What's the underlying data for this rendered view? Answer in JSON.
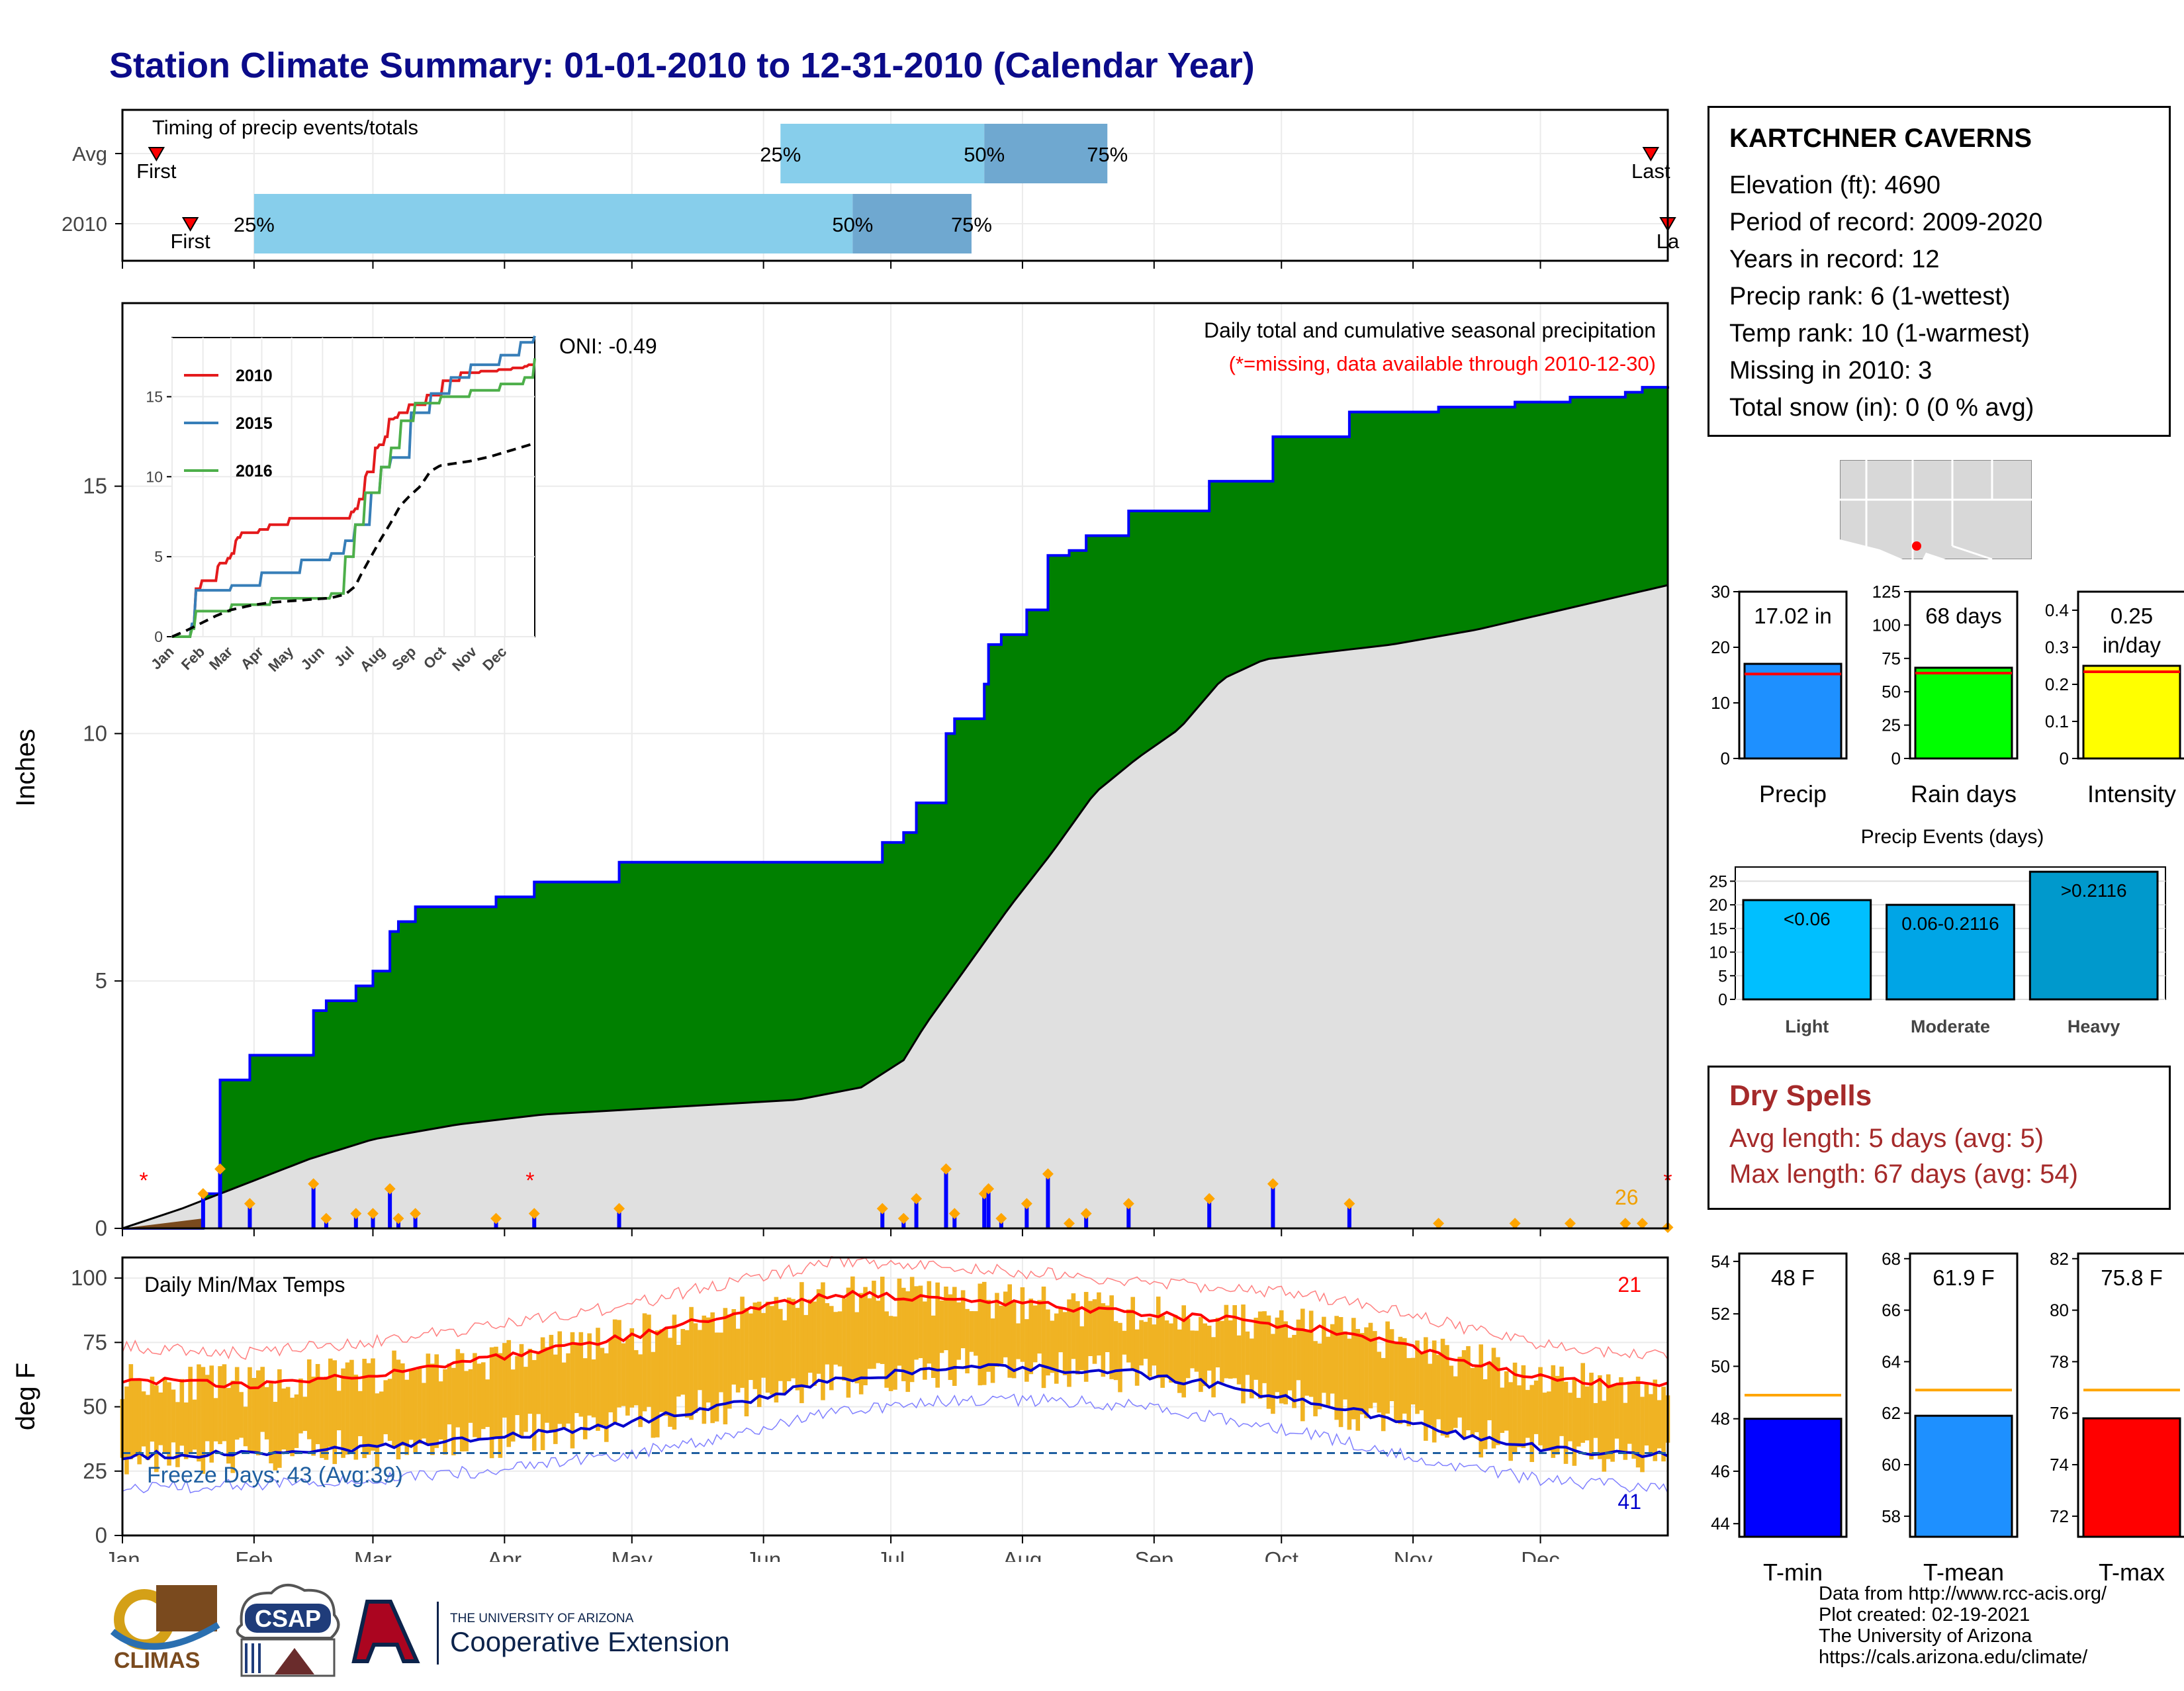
{
  "title": "Station Climate Summary: 01-01-2010 to 12-31-2010 (Calendar Year)",
  "colors": {
    "title": "#0b0b8a",
    "observed": "#008000",
    "normal": "#e0e0e0",
    "outline": "#0000ff",
    "tmax": "#ff0000",
    "tmin": "#0000cc",
    "range": "#f0b323",
    "q_light": "#87ceeb",
    "q_dark": "#6fa8d0",
    "dry": "#a52a2a"
  },
  "timing": {
    "label": "Timing of precip events/totals",
    "rows": [
      {
        "label": "Avg",
        "first_doy": 9,
        "last_doy": 361,
        "q25": 156,
        "q50": 204,
        "q75": 233,
        "first_text": "First",
        "last_text": "Last"
      },
      {
        "label": "2010",
        "first_doy": 17,
        "last_doy": 365,
        "q25": 32,
        "q50": 173,
        "q75": 201,
        "first_text": "First",
        "last_text": "La"
      }
    ],
    "q_labels": [
      "25%",
      "50%",
      "75%"
    ]
  },
  "precip": {
    "ylabel": "Inches",
    "yticks": [
      0,
      5,
      10,
      15
    ],
    "ylim": [
      0,
      18.7
    ],
    "annotation_title": "Daily total and cumulative seasonal precipitation",
    "annotation_missing": "(*=missing, data available through 2010-12-30)",
    "oni": "ONI: -0.49",
    "count_label": "26",
    "missing_markers": [
      6,
      97,
      365
    ]
  },
  "months": [
    "Jan",
    "Feb",
    "Mar",
    "Apr",
    "May",
    "Jun",
    "Jul",
    "Aug",
    "Sep",
    "Oct",
    "Nov",
    "Dec"
  ],
  "inset": {
    "xlabels": [
      "Jan",
      "Feb",
      "Mar",
      "Apr",
      "May",
      "Jun",
      "Jul",
      "Aug",
      "Sep",
      "Oct",
      "Nov",
      "Dec"
    ],
    "yticks": [
      0,
      5,
      10,
      15
    ],
    "legend": [
      {
        "name": "2010",
        "color": "#e41a1c"
      },
      {
        "name": "2015",
        "color": "#377eb8"
      },
      {
        "name": "2016",
        "color": "#4daf4a"
      }
    ]
  },
  "temps": {
    "ylabel": "deg F",
    "label": "Daily Min/Max Temps",
    "yticks": [
      0,
      25,
      50,
      75,
      100
    ],
    "freeze_text": "Freeze Days: 43 (Avg:39)",
    "hot_count": "21",
    "cold_count": "41",
    "freeze_line": 32
  },
  "station": {
    "name": "KARTCHNER CAVERNS",
    "lines": [
      "Elevation (ft): 4690",
      "Period of record: 2009-2020",
      "Years in record: 12",
      "Precip rank: 6 (1-wettest)",
      "Temp rank: 10 (1-warmest)",
      "Missing in 2010: 3",
      "Total snow (in): 0 (0 % avg)"
    ]
  },
  "bars": [
    {
      "label": "Precip",
      "value_text": "17.02 in",
      "value": 17.02,
      "avg": 15.2,
      "ylim": [
        0,
        30
      ],
      "yticks": [
        0,
        10,
        20,
        30
      ],
      "color": "#1e90ff"
    },
    {
      "label": "Rain days",
      "value_text": "68 days",
      "value": 68,
      "avg": 64,
      "ylim": [
        0,
        125
      ],
      "yticks": [
        0,
        25,
        50,
        75,
        100,
        125
      ],
      "color": "#00ff00"
    },
    {
      "label": "Intensity",
      "value_text_1": "0.25",
      "value_text_2": "in/day",
      "value": 0.25,
      "avg": 0.234,
      "ylim": [
        0,
        0.45
      ],
      "yticks": [
        0.0,
        0.1,
        0.2,
        0.3,
        0.4
      ],
      "color": "#ffff00"
    }
  ],
  "events": {
    "title": "Precip Events (days)",
    "categories": [
      "Light",
      "Moderate",
      "Heavy"
    ],
    "labels": [
      "<0.06",
      "0.06-0.2116",
      ">0.2116"
    ],
    "values": [
      21,
      20,
      27
    ],
    "yticks": [
      0,
      5,
      10,
      15,
      20,
      25
    ],
    "ylim": [
      0,
      28
    ],
    "colors": [
      "#00bfff",
      "#00a5e6",
      "#0099cc"
    ]
  },
  "dry": {
    "title": "Dry Spells",
    "line1": "Avg length: 5 days (avg: 5)",
    "line2": "Max length: 67 days (avg: 54)"
  },
  "temp_bars": [
    {
      "label": "T-min",
      "value_text": "48 F",
      "value": 48,
      "avg": 48.9,
      "ylim": [
        43.5,
        54.3
      ],
      "yticks": [
        44,
        46,
        48,
        50,
        52,
        54
      ],
      "color": "#0000ff"
    },
    {
      "label": "T-mean",
      "value_text": "61.9 F",
      "value": 61.9,
      "avg": 62.9,
      "ylim": [
        57.2,
        68.2
      ],
      "yticks": [
        58,
        60,
        62,
        64,
        66,
        68
      ],
      "color": "#1e90ff"
    },
    {
      "label": "T-max",
      "value_text": "75.8 F",
      "value": 75.8,
      "avg": 76.9,
      "ylim": [
        71.2,
        82.2
      ],
      "yticks": [
        72,
        74,
        76,
        78,
        80,
        82
      ],
      "color": "#ff0000"
    }
  ],
  "logos": {
    "climas": "CLIMAS",
    "csap": "CSAP",
    "ua_line1": "THE UNIVERSITY OF ARIZONA",
    "ua_line2": "Cooperative Extension"
  },
  "credits": [
    "Data from http://www.rcc-acis.org/",
    "Plot created: 02-19-2021",
    "The University of Arizona",
    "https://cals.arizona.edu/climate/"
  ],
  "chart_data": [
    {
      "type": "area",
      "title": "Daily total and cumulative seasonal precipitation",
      "ylabel": "Inches",
      "ylim": [
        0,
        18.7
      ],
      "series": [
        {
          "name": "2010",
          "x_doy": [
            1,
            20,
            24,
            31,
            33,
            46,
            49,
            56,
            60,
            64,
            66,
            70,
            75,
            89,
            98,
            104,
            118,
            131,
            167,
            180,
            185,
            188,
            195,
            197,
            200,
            202,
            204,
            205,
            208,
            210,
            214,
            218,
            219,
            224,
            228,
            238,
            240,
            250,
            257,
            272,
            290,
            311,
            319,
            329,
            333,
            342,
            350,
            355,
            359,
            365
          ],
          "values": [
            0,
            0.7,
            3,
            3.5,
            3.5,
            4.4,
            4.6,
            4.9,
            5.2,
            6,
            6.2,
            6.5,
            6.5,
            6.7,
            7,
            7,
            7.4,
            7.4,
            7.4,
            7.8,
            8,
            8.6,
            10,
            10.3,
            10.3,
            10.3,
            11,
            11.8,
            12,
            12,
            12.5,
            12.5,
            13.6,
            13.7,
            14,
            14.5,
            14.5,
            14.5,
            15.1,
            16,
            16.5,
            16.6,
            16.6,
            16.7,
            16.7,
            16.8,
            16.8,
            16.9,
            17,
            17.02
          ]
        },
        {
          "x_doy": [
            1,
            15,
            30,
            45,
            60,
            80,
            100,
            120,
            140,
            160,
            175,
            185,
            190,
            200,
            210,
            220,
            230,
            240,
            250,
            260,
            270,
            280,
            300,
            320,
            340,
            365
          ],
          "values": [
            0,
            0.4,
            0.9,
            1.4,
            1.8,
            2.1,
            2.3,
            2.4,
            2.5,
            2.6,
            2.85,
            3.4,
            4.1,
            5.3,
            6.5,
            7.6,
            8.8,
            9.5,
            10.1,
            11.1,
            11.5,
            11.6,
            11.8,
            12.1,
            12.5,
            13
          ]
        }
      ]
    },
    {
      "type": "line",
      "title": "Daily Min/Max Temps",
      "ylabel": "deg F",
      "ylim": [
        0,
        108
      ],
      "series": [
        {
          "name": "Tmax normal",
          "x_doy": [
            1,
            30,
            60,
            90,
            120,
            150,
            170,
            195,
            220,
            240,
            260,
            280,
            300,
            320,
            340,
            365
          ],
          "values": [
            61,
            58,
            63,
            69,
            77,
            88,
            94,
            92,
            89,
            86,
            84,
            81,
            75,
            67,
            60,
            58
          ]
        },
        {
          "name": "Tmin normal",
          "x_doy": [
            1,
            30,
            60,
            90,
            120,
            150,
            170,
            195,
            220,
            240,
            260,
            280,
            300,
            320,
            340,
            365
          ],
          "values": [
            31,
            32,
            34,
            38,
            44,
            53,
            61,
            65,
            65,
            63,
            58,
            52,
            45,
            38,
            33,
            31
          ]
        }
      ]
    }
  ]
}
